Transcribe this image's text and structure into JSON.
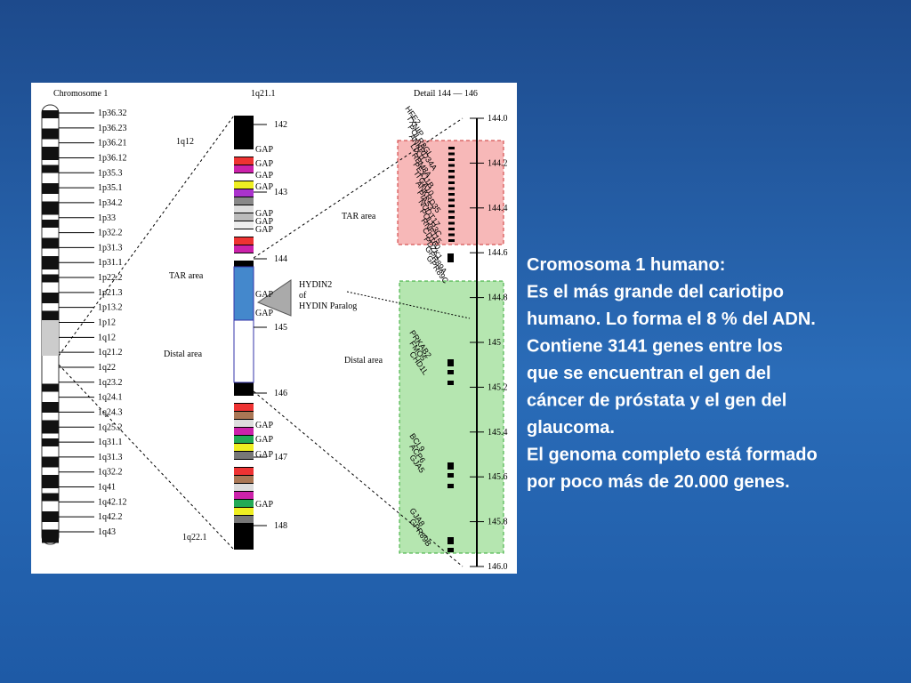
{
  "left": {
    "title": "Chromosome 1",
    "bands": [
      "1p36.32",
      "1p36.23",
      "1p36.21",
      "1p36.12",
      "1p35.3",
      "1p35.1",
      "1p34.2",
      "1p33",
      "1p32.2",
      "1p31.3",
      "1p31.1",
      "1p22.2",
      "1p21.3",
      "1p13.2",
      "1p12",
      "1q12",
      "1q21.2",
      "1q22",
      "1q23.2",
      "1q24.1",
      "1q24.3",
      "1q25.2",
      "1q31.1",
      "1q31.3",
      "1q32.2",
      "1q41",
      "1q42.12",
      "1q42.2",
      "1q43"
    ]
  },
  "middle": {
    "title": "1q21.1",
    "top": "1q12",
    "bottom": "1q22.1",
    "tar": "TAR area",
    "distal": "Distal area",
    "coords": [
      "142",
      "143",
      "144",
      "145",
      "146",
      "147",
      "148"
    ],
    "gaps": [
      "GAP",
      "GAP",
      "GAP",
      "GAP",
      "GAP",
      "GAP",
      "GAP",
      "GAP",
      "GAP",
      "GAP",
      "GAP",
      "GAP",
      "GAP"
    ],
    "paralog": [
      "HYDIN2",
      "of",
      "HYDIN Paralog"
    ]
  },
  "right": {
    "title": "Detail 144 — 146",
    "ticks": [
      "144.0",
      "144.2",
      "144.4",
      "144.6",
      "144.8",
      "145",
      "145.2",
      "145.4",
      "145.6",
      "145.8",
      "146.0"
    ],
    "tar": "TAR area",
    "distal": "Distal area",
    "tar_genes": [
      "HFE2",
      "TXNIP",
      "POLR3GL",
      "ANKRD34A",
      "LIX1L",
      "RBM8A",
      "PEX11B",
      "ITGA10",
      "ANKRD35",
      "PIAS3",
      "NUDT17",
      "POLR3C",
      "RNF115",
      "CD160",
      "PDZK1",
      "GPR89A",
      "GPR89C"
    ],
    "distal_genes": [
      "PRKAB2",
      "FMO5",
      "CHD1L",
      "BCL9",
      "ACP6",
      "GJA5",
      "GJA8",
      "GPR89B"
    ]
  },
  "text": [
    "Cromosoma 1 humano:",
    "Es el más grande del cariotipo",
    "humano. Lo forma el 8 % del ADN.",
    "Contiene 3141 genes entre los",
    "que se encuentran el gen del",
    "cáncer de próstata y el gen del",
    "glaucoma.",
    "El genoma completo está formado",
    "por poco más de 20.000 genes."
  ]
}
